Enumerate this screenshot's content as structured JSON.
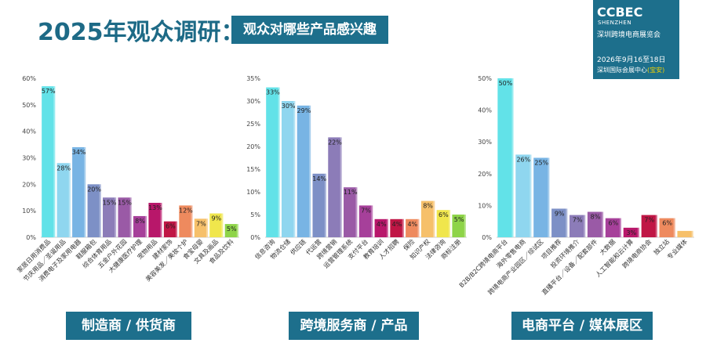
{
  "header": {
    "title": "2025年观众调研：",
    "subtitle": "观众对哪些产品感兴趣"
  },
  "brand": {
    "name": "CCBEC",
    "city": "SHENZHEN",
    "full_name": "深圳跨境电商展览会",
    "date": "2026年9月16至18日",
    "venue": "深圳国际会展中心",
    "venue_note": "(宝安)"
  },
  "categories": {
    "manufacturer": "制造商 / 供货商",
    "service": "跨境服务商 / 产品",
    "platform": "电商平台 / 媒体展区"
  },
  "chart_data": [
    {
      "type": "bar",
      "title": "制造商 / 供货商",
      "ylim": [
        0,
        60
      ],
      "yticks": [
        "0%",
        "10%",
        "20%",
        "30%",
        "40%",
        "50%",
        "60%"
      ],
      "categories": [
        "家居日用消费品",
        "节庆用品／圣诞用品",
        "消费电子及家用电器",
        "鞋服箱包",
        "综合体育用品",
        "五金户外花园",
        "大健康医疗护理",
        "宠物用品",
        "建材家饰",
        "美容美发／美妆个护",
        "食宝母婴",
        "文具及画品",
        "食品及饮料"
      ],
      "values": [
        57,
        28,
        34,
        20,
        15,
        15,
        8,
        13,
        6,
        12,
        7,
        9,
        5
      ],
      "labels": [
        "57%",
        "28%",
        "34%",
        "20%",
        "15%",
        "15%",
        "8%",
        "13%",
        "6%",
        "12%",
        "7%",
        "9%",
        "5%"
      ],
      "colors": [
        "#62e2e8",
        "#8fd6ef",
        "#78b4e4",
        "#7d90c6",
        "#8c7cb8",
        "#9a5aa6",
        "#a6409a",
        "#b8176a",
        "#c01645",
        "#ee8a5e",
        "#f6c06a",
        "#f0e64c",
        "#8ed448"
      ]
    },
    {
      "type": "bar",
      "title": "跨境服务商 / 产品",
      "ylim": [
        0,
        35
      ],
      "yticks": [
        "0%",
        "5%",
        "10%",
        "15%",
        "20%",
        "25%",
        "30%",
        "35%"
      ],
      "categories": [
        "信息咨询",
        "物流仓储",
        "供应链",
        "代运营",
        "跨境营销",
        "运营管理系统",
        "支付平台",
        "教育培训",
        "人才招聘",
        "保险",
        "知识产权",
        "法律咨询",
        "商标注册"
      ],
      "values": [
        33,
        30,
        29,
        14,
        22,
        11,
        7,
        4,
        4,
        4,
        8,
        6,
        5
      ],
      "labels": [
        "33%",
        "30%",
        "29%",
        "14%",
        "22%",
        "11%",
        "7%",
        "4%",
        "4%",
        "4%",
        "8%",
        "6%",
        "5%"
      ],
      "colors": [
        "#62e2e8",
        "#8fd6ef",
        "#78b4e4",
        "#7d90c6",
        "#8c7cb8",
        "#9a5aa6",
        "#a6409a",
        "#b8176a",
        "#c01645",
        "#ee8a5e",
        "#f6c06a",
        "#f0e64c",
        "#8ed448"
      ]
    },
    {
      "type": "bar",
      "title": "电商平台 / 媒体展区",
      "ylim": [
        0,
        50
      ],
      "yticks": [
        "0%",
        "10%",
        "20%",
        "30%",
        "40%",
        "50%"
      ],
      "categories": [
        "B2B/B2C跨境电商平台",
        "海外零售电商",
        "跨境电商产业园区／综试区",
        "项目推荐",
        "投资环境推介",
        "直播平台／设备／配套部件",
        "大数据",
        "人工智能和云计算",
        "跨境电商协会",
        "独立站",
        "专业媒体"
      ],
      "values": [
        50,
        26,
        25,
        9,
        7,
        8,
        6,
        3,
        7,
        6,
        2
      ],
      "labels": [
        "50%",
        "26%",
        "25%",
        "9%",
        "7%",
        "8%",
        "6%",
        "3%",
        "7%",
        "6%",
        ""
      ],
      "colors": [
        "#62e2e8",
        "#8fd6ef",
        "#78b4e4",
        "#7d90c6",
        "#8c7cb8",
        "#9a5aa6",
        "#a6409a",
        "#b8176a",
        "#c01645",
        "#ee8a5e",
        "#f6c06a"
      ]
    }
  ]
}
